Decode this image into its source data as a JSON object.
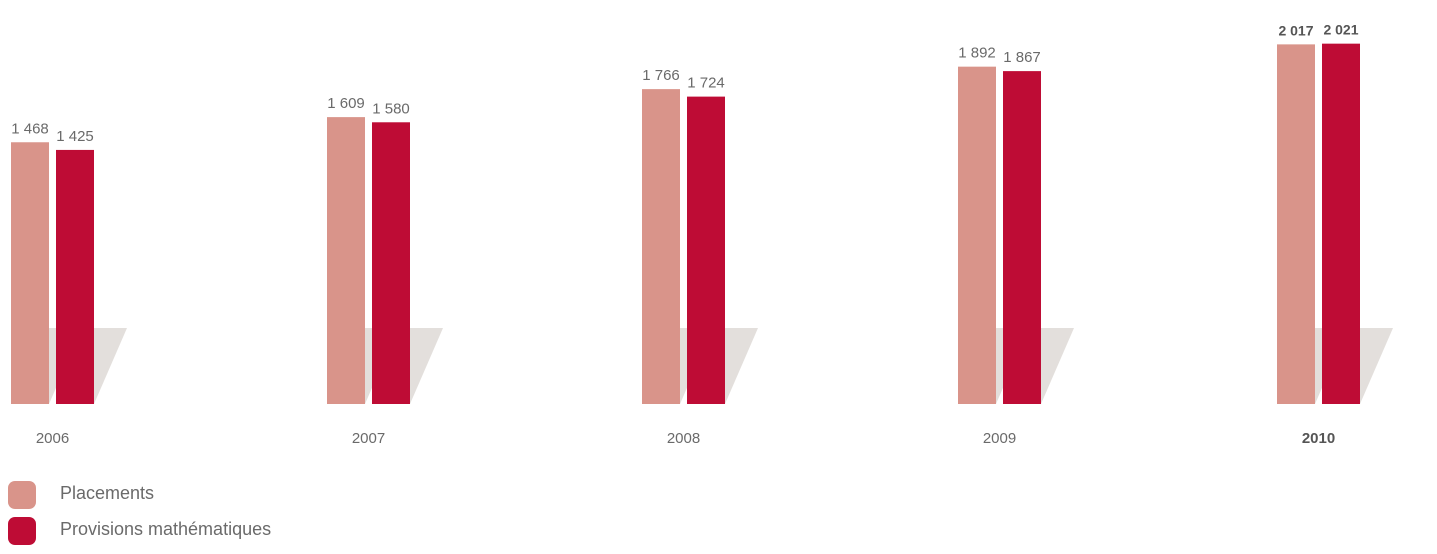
{
  "chart_data": {
    "type": "bar",
    "categories": [
      "2006",
      "2007",
      "2008",
      "2009",
      "2010"
    ],
    "highlighted_category": "2010",
    "series": [
      {
        "name": "Placements",
        "color": "#d9948a",
        "values": [
          1468,
          1609,
          1766,
          1892,
          2017
        ],
        "labels": [
          "1 468",
          "1 609",
          "1 766",
          "1 892",
          "2 017"
        ]
      },
      {
        "name": "Provisions mathématiques",
        "color": "#be0c35",
        "values": [
          1425,
          1580,
          1724,
          1867,
          2021
        ],
        "labels": [
          "1 425",
          "1 580",
          "1 724",
          "1 867",
          "2 021"
        ]
      }
    ],
    "legend_position": "bottom-left",
    "shadow_color": "#e3dfdc",
    "text_color": "#6a6a6a",
    "highlight_text_color": "#555555",
    "grid": false
  },
  "legend": {
    "items": [
      {
        "label": "Placements",
        "color": "#d9948a"
      },
      {
        "label": "Provisions mathématiques",
        "color": "#be0c35"
      }
    ]
  }
}
